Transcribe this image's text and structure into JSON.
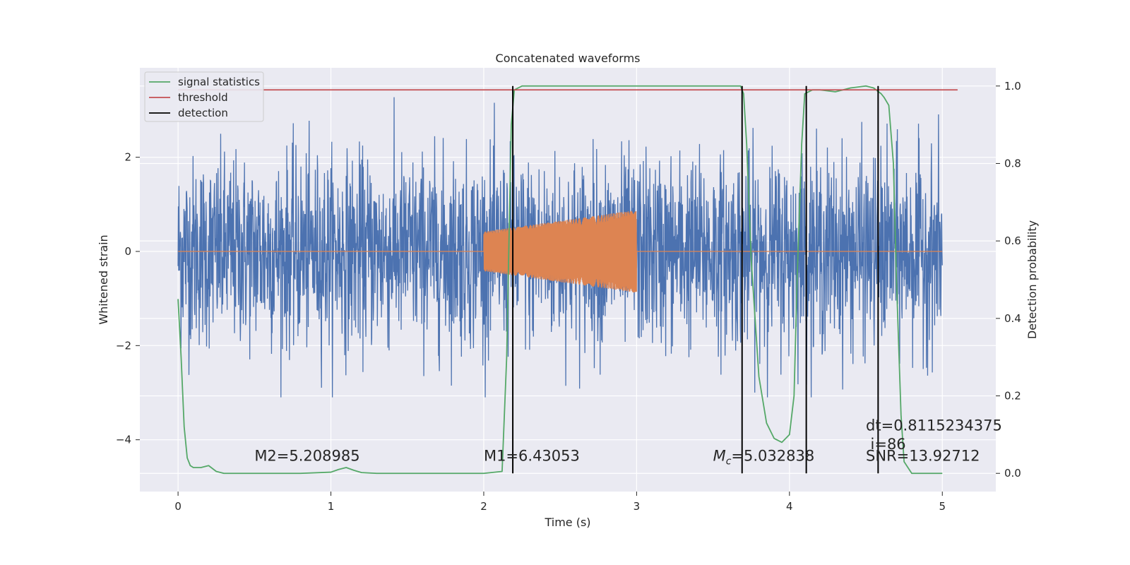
{
  "chart_data": {
    "type": "line",
    "title": "Concatenated waveforms",
    "xlabel": "Time (s)",
    "ylabel": "Whitened strain",
    "ylabel_right": "Detection probability",
    "xlim": [
      -0.25,
      5.35
    ],
    "ylim": [
      -5.1,
      3.9
    ],
    "ylim_right": [
      -0.047,
      1.047
    ],
    "x_ticks": [
      0,
      1,
      2,
      3,
      4,
      5
    ],
    "x_tick_labels": [
      "0",
      "1",
      "2",
      "3",
      "4",
      "5"
    ],
    "y_ticks": [
      -4,
      -2,
      0,
      2
    ],
    "y_tick_labels": [
      "−4",
      "−2",
      "0",
      "2"
    ],
    "y_right_ticks": [
      0.0,
      0.2,
      0.4,
      0.6,
      0.8,
      1.0
    ],
    "y_right_tick_labels": [
      "0.0",
      "0.2",
      "0.4",
      "0.6",
      "0.8",
      "1.0"
    ],
    "grid": true,
    "legend_position": "top-left",
    "colors": {
      "noise": "#4c72b0",
      "template": "#dd8452",
      "signal_statistics": "#55a868",
      "threshold": "#c44e52",
      "detection": "#000000",
      "axes_background": "#eaeaf2",
      "grid": "#ffffff"
    },
    "series": [
      {
        "name": "signal statistics",
        "axis": "right",
        "x": [
          0.0,
          0.02,
          0.04,
          0.06,
          0.08,
          0.1,
          0.15,
          0.2,
          0.25,
          0.3,
          0.5,
          0.8,
          1.0,
          1.05,
          1.1,
          1.15,
          1.2,
          1.3,
          1.6,
          2.0,
          2.12,
          2.15,
          2.18,
          2.2,
          2.25,
          2.5,
          3.0,
          3.5,
          3.68,
          3.7,
          3.72,
          3.75,
          3.8,
          3.85,
          3.9,
          3.95,
          4.0,
          4.03,
          4.05,
          4.08,
          4.1,
          4.15,
          4.2,
          4.3,
          4.4,
          4.5,
          4.55,
          4.6,
          4.62,
          4.65,
          4.68,
          4.7,
          4.73,
          4.75,
          4.8,
          5.0
        ],
        "y": [
          0.45,
          0.3,
          0.12,
          0.04,
          0.02,
          0.015,
          0.015,
          0.02,
          0.005,
          0.0,
          0.0,
          0.0,
          0.003,
          0.01,
          0.015,
          0.008,
          0.002,
          0.0,
          0.0,
          0.0,
          0.005,
          0.3,
          0.9,
          0.99,
          1.0,
          1.0,
          1.0,
          1.0,
          1.0,
          0.98,
          0.85,
          0.55,
          0.25,
          0.13,
          0.09,
          0.08,
          0.1,
          0.2,
          0.5,
          0.85,
          0.98,
          0.99,
          0.99,
          0.985,
          0.995,
          1.0,
          0.995,
          0.98,
          0.97,
          0.95,
          0.8,
          0.5,
          0.15,
          0.03,
          0.0,
          0.0
        ]
      },
      {
        "name": "threshold",
        "axis": "right",
        "x": [
          0.0,
          5.1
        ],
        "y": [
          0.99,
          0.99
        ]
      },
      {
        "name": "detection",
        "axis": "right",
        "type": "vlines",
        "x": [
          2.19,
          3.69,
          4.11,
          4.58
        ],
        "ymin": 0.0,
        "ymax": 1.0
      }
    ],
    "noise_series": {
      "axis": "left",
      "x_range": [
        0.0,
        5.0
      ],
      "spread": 1.0,
      "peak_range": [
        -3.1,
        3.5
      ]
    },
    "template_series": {
      "axis": "left",
      "x_range": [
        2.0,
        3.0
      ],
      "amplitude_start": 0.42,
      "amplitude_end": 0.88
    },
    "legend": [
      "signal statistics",
      "threshold",
      "detection"
    ],
    "annotations": [
      {
        "text": "M2=5.208985",
        "x": 0.5,
        "y": -4.45
      },
      {
        "text": "M1=6.43053",
        "x": 2.0,
        "y": -4.45
      },
      {
        "text_math": "M",
        "text_sub": "c",
        "text_rest": "=5.032838",
        "x": 3.5,
        "y": -4.45
      },
      {
        "text": "dt=0.8115234375",
        "x": 4.5,
        "y": -3.8
      },
      {
        "text": "i=86",
        "x": 4.53,
        "y": -4.2
      },
      {
        "text": "SNR=13.92712",
        "x": 4.5,
        "y": -4.45
      }
    ]
  }
}
